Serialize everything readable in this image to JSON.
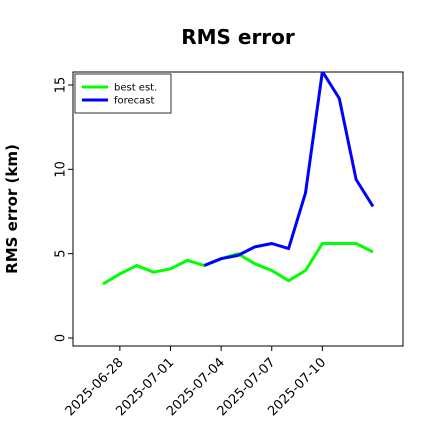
{
  "chart_data": {
    "type": "line",
    "title": "RMS error",
    "xlabel": "",
    "ylabel": "RMS error (km)",
    "x": [
      "2025-06-27",
      "2025-06-28",
      "2025-06-29",
      "2025-06-30",
      "2025-07-01",
      "2025-07-02",
      "2025-07-03",
      "2025-07-04",
      "2025-07-05",
      "2025-07-06",
      "2025-07-07",
      "2025-07-08",
      "2025-07-09",
      "2025-07-10",
      "2025-07-11",
      "2025-07-12",
      "2025-07-13"
    ],
    "xticks": [
      "2025-06-28",
      "2025-07-01",
      "2025-07-04",
      "2025-07-07",
      "2025-07-10"
    ],
    "ylim": [
      0,
      15
    ],
    "yticks": [
      "0",
      "5",
      "10",
      "15"
    ],
    "grid": false,
    "legend_position": "top-left",
    "series": [
      {
        "name": "best est.",
        "color": "#00ff00",
        "values": [
          3.2,
          3.8,
          4.3,
          3.9,
          4.1,
          4.6,
          4.3,
          4.7,
          5.0,
          4.4,
          4.0,
          3.4,
          4.0,
          5.6,
          5.6,
          5.6,
          5.1
        ]
      },
      {
        "name": "forecast",
        "color": "#0000ff",
        "values": [
          null,
          null,
          null,
          null,
          null,
          null,
          4.3,
          4.7,
          4.9,
          5.4,
          5.6,
          5.3,
          8.6,
          15.8,
          14.2,
          9.4,
          7.8
        ]
      }
    ]
  }
}
